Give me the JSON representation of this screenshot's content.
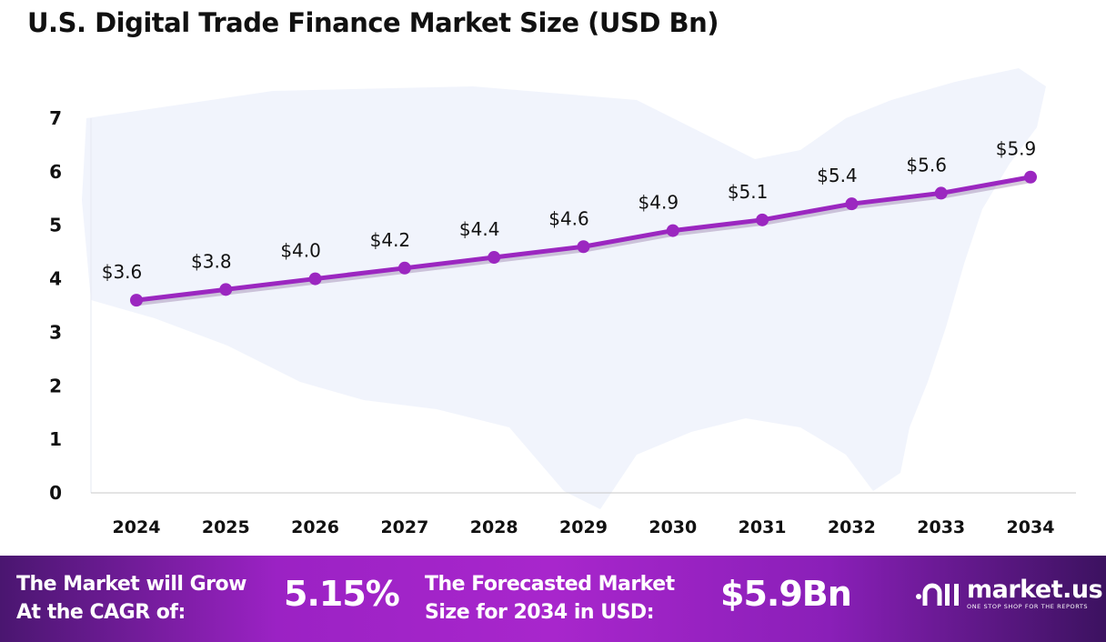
{
  "chart_data": {
    "type": "line",
    "title": "U.S. Digital Trade Finance Market Size (USD Bn)",
    "categories": [
      "2024",
      "2025",
      "2026",
      "2027",
      "2028",
      "2029",
      "2030",
      "2031",
      "2032",
      "2033",
      "2034"
    ],
    "values": [
      3.6,
      3.8,
      4.0,
      4.2,
      4.4,
      4.6,
      4.9,
      5.1,
      5.4,
      5.6,
      5.9
    ],
    "data_labels": [
      "$3.6",
      "$3.8",
      "$4.0",
      "$4.2",
      "$4.4",
      "$4.6",
      "$4.9",
      "$5.1",
      "$5.4",
      "$5.6",
      "$5.9"
    ],
    "yticks": [
      "0",
      "1",
      "2",
      "3",
      "4",
      "5",
      "6",
      "7"
    ],
    "ylim": [
      0,
      7
    ],
    "xlabel": "",
    "ylabel": "",
    "grid": false,
    "line_color": "#9b27c0",
    "background": "US map silhouette"
  },
  "footer": {
    "cagr_text_1": "The Market will Grow",
    "cagr_text_2": "At the CAGR of:",
    "cagr_value": "5.15%",
    "forecast_text_1": "The Forecasted Market",
    "forecast_text_2": "Size for 2034 in USD:",
    "forecast_value": "$5.9Bn",
    "logo_name": "market.us",
    "logo_tagline": "ONE STOP SHOP FOR THE REPORTS"
  }
}
